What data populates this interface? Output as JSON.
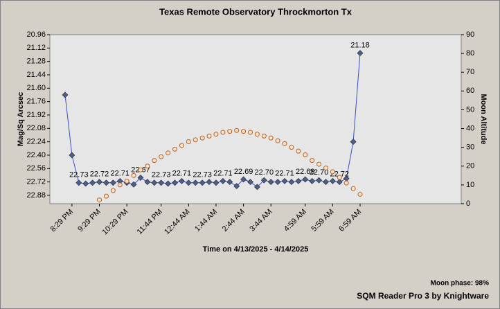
{
  "chart_data": {
    "type": "line",
    "title": "Texas Remote Observatory   Throckmorton Tx",
    "x_label": "Time on 4/13/2025 - 4/14/2025",
    "y_label": "Mag/Sq Arcsec",
    "y2_label": "Moon Altitude",
    "footer_note": "Moon phase: 98%",
    "footer_credit": "SQM Reader Pro 3 by Knightware",
    "x": [
      "8:14 PM",
      "8:29 PM",
      "8:44 PM",
      "8:59 PM",
      "9:14 PM",
      "9:29 PM",
      "9:44 PM",
      "9:59 PM",
      "10:14 PM",
      "10:29 PM",
      "10:44 PM",
      "10:59 PM",
      "11:14 PM",
      "11:29 PM",
      "11:44 PM",
      "11:59 PM",
      "12:14 AM",
      "12:29 AM",
      "12:44 AM",
      "12:59 AM",
      "1:14 AM",
      "1:29 AM",
      "1:44 AM",
      "1:59 AM",
      "2:14 AM",
      "2:29 AM",
      "2:44 AM",
      "2:59 AM",
      "3:14 AM",
      "3:29 AM",
      "3:44 AM",
      "3:59 AM",
      "4:14 AM",
      "4:29 AM",
      "4:44 AM",
      "4:59 AM",
      "5:14 AM",
      "5:29 AM",
      "5:44 AM",
      "5:59 AM",
      "6:14 AM",
      "6:29 AM",
      "6:44 AM",
      "6:59 AM"
    ],
    "xticks": [
      "8:29 PM",
      "9:29 PM",
      "10:29 PM",
      "11:44 PM",
      "12:44 AM",
      "1:44 AM",
      "2:44 AM",
      "3:44 AM",
      "4:59 AM",
      "5:59 AM",
      "6:59 AM"
    ],
    "ylim": [
      20.96,
      22.98
    ],
    "y_inverted": true,
    "yticks": [
      20.96,
      21.12,
      21.28,
      21.44,
      {
        "value": 21.6,
        "label": "21.60"
      },
      21.76,
      21.92,
      22.08,
      22.24,
      {
        "value": 22.4,
        "label": "22.40"
      },
      22.56,
      22.72,
      22.88
    ],
    "y2lim": [
      0,
      90
    ],
    "y2ticks": [
      0,
      10,
      20,
      30,
      40,
      50,
      60,
      70,
      80,
      90
    ],
    "series": [
      {
        "name": "SQM",
        "color": "#3a4cc8",
        "marker_color": "#4f5f80",
        "marker": "diamond",
        "values": [
          21.68,
          22.4,
          22.73,
          22.74,
          22.73,
          22.72,
          22.73,
          22.73,
          22.71,
          22.73,
          22.75,
          22.67,
          22.72,
          22.73,
          22.73,
          22.74,
          22.73,
          22.71,
          22.73,
          22.73,
          22.73,
          22.72,
          22.73,
          22.71,
          22.72,
          22.77,
          22.69,
          22.72,
          22.78,
          22.7,
          22.72,
          22.72,
          22.71,
          22.72,
          22.71,
          22.69,
          22.71,
          22.7,
          22.72,
          22.71,
          22.72,
          22.68,
          22.24,
          21.18
        ],
        "value_labels": [
          null,
          null,
          "22.73",
          null,
          null,
          "22.72",
          null,
          null,
          "22.71",
          null,
          null,
          "22.67",
          null,
          null,
          "22.73",
          null,
          null,
          "22.71",
          null,
          null,
          "22.73",
          null,
          null,
          "22.71",
          null,
          null,
          "22.69",
          null,
          null,
          "22.70",
          null,
          null,
          "22.71",
          null,
          null,
          "22.69",
          null,
          "22.70",
          null,
          null,
          "22.72",
          null,
          null,
          "21.18"
        ]
      },
      {
        "name": "Moon Altitude",
        "axis": "y2",
        "color": "#b0602c",
        "marker_color": "#ffe2c4",
        "marker": "circle",
        "values": [
          null,
          null,
          null,
          null,
          null,
          2,
          4,
          7,
          10,
          12,
          15,
          18,
          20,
          23,
          25,
          27,
          29,
          31,
          33,
          34,
          35,
          36,
          37,
          38,
          38.5,
          39,
          38.5,
          38,
          37,
          36,
          35,
          33.5,
          32,
          30,
          28,
          26,
          23,
          21,
          19,
          17,
          14,
          11,
          8,
          5
        ]
      }
    ]
  }
}
